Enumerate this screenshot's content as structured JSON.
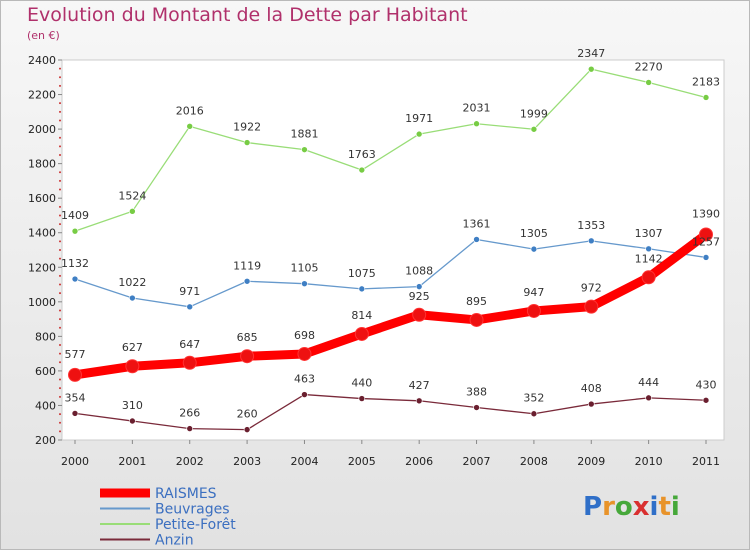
{
  "chart_data": {
    "type": "line",
    "title": "Evolution du Montant de la Dette par Habitant",
    "subtitle": "(en €)",
    "xlabel": "",
    "ylabel": "",
    "ylim": [
      200,
      2400
    ],
    "y_ticks": [
      200,
      400,
      600,
      800,
      1000,
      1200,
      1400,
      1600,
      1800,
      2000,
      2200,
      2400
    ],
    "categories": [
      "2000",
      "2001",
      "2002",
      "2003",
      "2004",
      "2005",
      "2006",
      "2007",
      "2008",
      "2009",
      "2010",
      "2011"
    ],
    "series": [
      {
        "name": "RAISMES",
        "color": "#ff0000",
        "marker_color": "#ee1111",
        "values": [
          577,
          627,
          647,
          685,
          698,
          814,
          925,
          895,
          947,
          972,
          1142,
          1390
        ]
      },
      {
        "name": "Beuvrages",
        "color": "#6699cc",
        "marker_color": "#3f7fc4",
        "values": [
          1132,
          1022,
          971,
          1119,
          1105,
          1075,
          1088,
          1361,
          1305,
          1353,
          1307,
          1257
        ]
      },
      {
        "name": "Petite-Forêt",
        "color": "#99dd77",
        "marker_color": "#77cc44",
        "values": [
          1409,
          1524,
          2016,
          1922,
          1881,
          1763,
          1971,
          2031,
          1999,
          2347,
          2270,
          2183
        ]
      },
      {
        "name": "Anzin",
        "color": "#7a2a3a",
        "marker_color": "#6a1f2f",
        "values": [
          354,
          310,
          266,
          260,
          463,
          440,
          427,
          388,
          352,
          408,
          444,
          430
        ]
      }
    ],
    "legend_position": "bottom-left"
  },
  "logo": {
    "text": "Proxiti"
  }
}
